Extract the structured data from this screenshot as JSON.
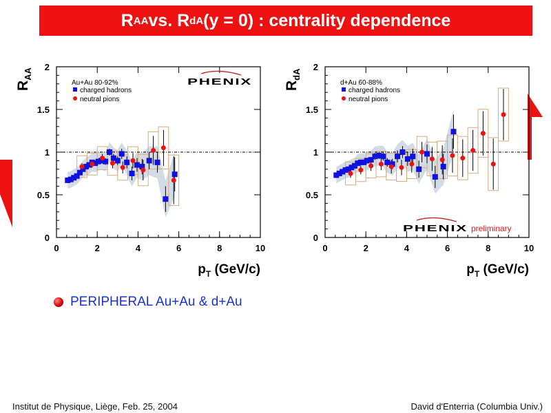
{
  "slide": {
    "title_parts": [
      "R",
      "AA",
      " vs. R",
      "dA",
      " (y = 0) : centrality dependence"
    ],
    "bullet": "PERIPHERAL Au+Au & d+Au",
    "footer_left": "Institut de Physique, Liège, Feb. 25, 2004",
    "footer_right": "David d'Enterria (Columbia Univ.)"
  },
  "colors": {
    "title_bg": "#ee1111",
    "charged_hadrons": "#1111dd",
    "neutral_pions": "#ee1111",
    "band": "#c8d3e0",
    "box": "#d9aa7a",
    "bullet_text": "#1a30d8",
    "arrow": "#ee1111"
  },
  "chart_data": [
    {
      "type": "scatter",
      "ylabel_main": "R",
      "ylabel_sub": "AA",
      "xlabel_main": "p",
      "xlabel_sub": "T",
      "xlabel_rest": " (GeV/c)",
      "xlim": [
        0,
        10
      ],
      "ylim": [
        0,
        2
      ],
      "xticks": [
        "0",
        "2",
        "4",
        "6",
        "8",
        "10"
      ],
      "yticks": [
        "0",
        "0.5",
        "1",
        "1.5",
        "2"
      ],
      "reference_line": 1,
      "legend_title": "Au+Au 80-92%",
      "logo": "PHENIX",
      "logo_note": "",
      "series": [
        {
          "name": "charged hadrons",
          "marker": "square",
          "x": [
            0.55,
            0.7,
            0.85,
            1.0,
            1.15,
            1.3,
            1.45,
            1.6,
            1.75,
            1.9,
            2.05,
            2.2,
            2.4,
            2.6,
            2.8,
            3.0,
            3.2,
            3.45,
            3.7,
            3.95,
            4.2,
            4.55,
            4.95,
            5.35,
            5.8
          ],
          "y": [
            0.67,
            0.68,
            0.7,
            0.72,
            0.76,
            0.8,
            0.83,
            0.85,
            0.88,
            0.87,
            0.89,
            0.9,
            0.89,
            1.0,
            0.93,
            0.9,
            0.98,
            0.88,
            0.75,
            0.85,
            0.83,
            0.9,
            0.88,
            0.45,
            0.74
          ],
          "err": [
            0.02,
            0.02,
            0.02,
            0.02,
            0.02,
            0.02,
            0.03,
            0.03,
            0.03,
            0.03,
            0.03,
            0.03,
            0.04,
            0.04,
            0.05,
            0.05,
            0.06,
            0.07,
            0.08,
            0.08,
            0.09,
            0.1,
            0.12,
            0.15,
            0.2
          ]
        },
        {
          "name": "neutral pions",
          "marker": "circle",
          "x": [
            1.25,
            1.75,
            2.25,
            2.75,
            3.25,
            3.75,
            4.25,
            4.75,
            5.25,
            5.75
          ],
          "y": [
            0.83,
            0.86,
            0.93,
            0.87,
            0.82,
            0.9,
            0.79,
            1.02,
            1.05,
            0.67
          ],
          "err": [
            0.04,
            0.04,
            0.05,
            0.06,
            0.07,
            0.09,
            0.12,
            0.17,
            0.21,
            0.28
          ]
        }
      ]
    },
    {
      "type": "scatter",
      "ylabel_main": "R",
      "ylabel_sub": "dA",
      "xlabel_main": "p",
      "xlabel_sub": "T",
      "xlabel_rest": " (GeV/c)",
      "xlim": [
        0,
        10
      ],
      "ylim": [
        0,
        2
      ],
      "xticks": [
        "0",
        "2",
        "4",
        "6",
        "8",
        "10"
      ],
      "yticks": [
        "0",
        "0.5",
        "1",
        "1.5",
        "2"
      ],
      "reference_line": 1,
      "legend_title": "d+Au 60-88%",
      "logo": "PHENIX",
      "logo_note": "preliminary",
      "series": [
        {
          "name": "charged hadrons",
          "marker": "square",
          "x": [
            0.55,
            0.7,
            0.85,
            1.0,
            1.15,
            1.3,
            1.45,
            1.6,
            1.75,
            1.9,
            2.05,
            2.25,
            2.45,
            2.65,
            2.85,
            3.05,
            3.3,
            3.55,
            3.8,
            4.05,
            4.3,
            4.6,
            5.0,
            5.4,
            5.8,
            6.3
          ],
          "y": [
            0.73,
            0.75,
            0.77,
            0.79,
            0.8,
            0.82,
            0.84,
            0.87,
            0.88,
            0.88,
            0.9,
            0.91,
            0.95,
            0.96,
            0.95,
            0.88,
            0.86,
            0.95,
            1.0,
            0.92,
            0.95,
            0.8,
            0.98,
            0.71,
            0.83,
            1.24
          ],
          "err": [
            0.02,
            0.02,
            0.02,
            0.02,
            0.02,
            0.02,
            0.02,
            0.03,
            0.03,
            0.03,
            0.03,
            0.03,
            0.04,
            0.04,
            0.05,
            0.05,
            0.06,
            0.07,
            0.07,
            0.08,
            0.09,
            0.1,
            0.11,
            0.13,
            0.15,
            0.2
          ]
        },
        {
          "name": "neutral pions",
          "marker": "circle",
          "x": [
            1.25,
            1.75,
            2.25,
            2.75,
            3.25,
            3.75,
            4.25,
            4.75,
            5.25,
            5.75,
            6.25,
            6.75,
            7.25,
            7.75,
            8.25,
            8.75
          ],
          "y": [
            0.75,
            0.79,
            0.84,
            0.86,
            0.83,
            0.82,
            0.86,
            1.0,
            0.92,
            0.91,
            0.96,
            0.93,
            1.02,
            1.22,
            0.86,
            1.44
          ],
          "err": [
            0.05,
            0.05,
            0.06,
            0.07,
            0.08,
            0.09,
            0.1,
            0.12,
            0.14,
            0.17,
            0.2,
            0.22,
            0.24,
            0.26,
            0.3,
            0.3
          ]
        }
      ]
    }
  ]
}
